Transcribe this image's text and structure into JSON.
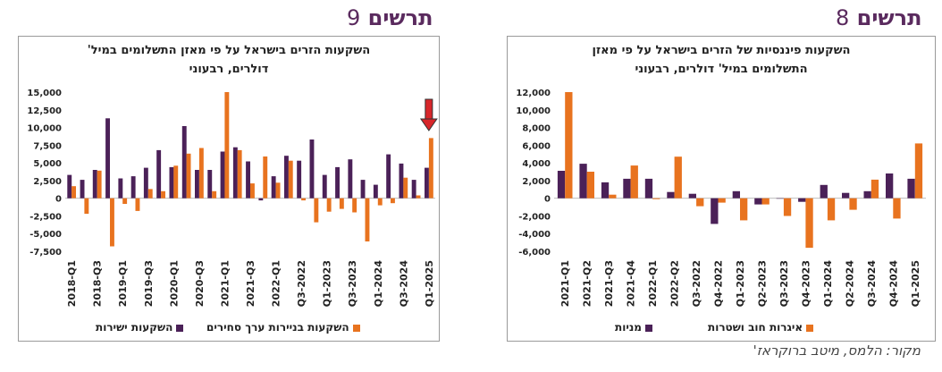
{
  "headers": {
    "left": {
      "label": "תרשים",
      "number": "9"
    },
    "right": {
      "label": "תרשים",
      "number": "8"
    }
  },
  "source": "מקור: הלמס, מיטב ברוקראז'",
  "colors": {
    "purple": "#4b2158",
    "orange": "#e8731f",
    "header": "#5a2a5e"
  },
  "chart_data": [
    {
      "id": "fig9",
      "type": "bar",
      "title_line1": "השקעות הזרים בישראל על פי מאזן התשלומים במיל'",
      "title_line2": "דולרים, רבעוני",
      "ylim": [
        -7500,
        15000
      ],
      "yticks": [
        "15,000",
        "12,500",
        "10,000",
        "7,500",
        "5,000",
        "2,500",
        "0",
        "-2,500",
        "-5,000",
        "-7,500"
      ],
      "ytick_values": [
        15000,
        12500,
        10000,
        7500,
        5000,
        2500,
        0,
        -2500,
        -5000,
        -7500
      ],
      "categories": [
        "2018-Q1",
        "2018-Q2",
        "2018-Q3",
        "2018-Q4",
        "2019-Q1",
        "2019-Q2",
        "2019-Q3",
        "2019-Q4",
        "2020-Q1",
        "2020-Q2",
        "2020-Q3",
        "2020-Q4",
        "2021-Q1",
        "2021-Q2",
        "2021-Q3",
        "2021-Q4",
        "2022-Q1",
        "2022-Q2",
        "Q3-2022",
        "Q4-2022",
        "Q1-2023",
        "Q2-2023",
        "Q3-2023",
        "Q4-2023",
        "Q1-2024",
        "Q2-2024",
        "Q3-2024",
        "Q4-2024",
        "Q1-2025"
      ],
      "xtick_labels": [
        "2018-Q1",
        "2018-Q3",
        "2019-Q1",
        "2019-Q3",
        "2020-Q1",
        "2020-Q3",
        "2021-Q1",
        "2021-Q3",
        "2022-Q1",
        "Q3-2022",
        "Q1-2023",
        "Q3-2023",
        "Q1-2024",
        "Q3-2024",
        "Q1-2025"
      ],
      "series": [
        {
          "name": "השקעות ישירות",
          "color": "#4b2158",
          "values": [
            3300,
            2600,
            4000,
            11300,
            2800,
            3100,
            4300,
            6800,
            4400,
            10200,
            4000,
            4000,
            6600,
            7200,
            5200,
            -300,
            3100,
            6000,
            5300,
            8300,
            3300,
            4400,
            5500,
            2600,
            1900,
            6200,
            4900,
            2600,
            4300
          ]
        },
        {
          "name": "השקעות בניירות ערך סחירים",
          "color": "#e8731f",
          "values": [
            1700,
            -2200,
            3900,
            -6800,
            -800,
            -1800,
            1300,
            1000,
            4600,
            6300,
            7100,
            1000,
            15000,
            6800,
            2100,
            5900,
            2200,
            5300,
            -300,
            -3400,
            -1900,
            -1500,
            -2000,
            -6100,
            -1000,
            -700,
            2900,
            400,
            8500
          ]
        }
      ],
      "annotation": "red down arrow pointing to last quarter"
    },
    {
      "id": "fig8",
      "type": "bar",
      "title_line1": "השקעות פיננסיות  של הזרים בישראל על פי מאזן",
      "title_line2": "התשלומים במיל' דולרים, רבעוני",
      "ylim": [
        -6000,
        12000
      ],
      "yticks": [
        "12,000",
        "10,000",
        "8,000",
        "6,000",
        "4,000",
        "2,000",
        "0",
        "-2,000",
        "-4,000",
        "-6,000"
      ],
      "ytick_values": [
        12000,
        10000,
        8000,
        6000,
        4000,
        2000,
        0,
        -2000,
        -4000,
        -6000
      ],
      "categories": [
        "2021-Q1",
        "2021-Q2",
        "2021-Q3",
        "2021-Q4",
        "2022-Q1",
        "2022-Q2",
        "Q3-2022",
        "Q4-2022",
        "Q1-2023",
        "Q2-2023",
        "Q3-2023",
        "Q4-2023",
        "Q1-2024",
        "Q2-2024",
        "Q3-2024",
        "Q4-2024",
        "Q1-2025"
      ],
      "xtick_labels": [
        "2021-Q1",
        "2021-Q2",
        "2021-Q3",
        "2021-Q4",
        "2022-Q1",
        "2022-Q2",
        "Q3-2022",
        "Q4-2022",
        "Q1-2023",
        "Q2-2023",
        "Q3-2023",
        "Q4-2023",
        "Q1-2024",
        "Q2-2024",
        "Q3-2024",
        "Q4-2024",
        "Q1-2025"
      ],
      "series": [
        {
          "name": "מניות",
          "color": "#4b2158",
          "values": [
            3100,
            3900,
            1800,
            2200,
            2200,
            700,
            500,
            -2900,
            800,
            -700,
            0,
            -400,
            1500,
            600,
            800,
            2800,
            2200
          ]
        },
        {
          "name": "איגרות חוב ושטרות",
          "color": "#e8731f",
          "values": [
            12000,
            3000,
            400,
            3700,
            -100,
            4700,
            -900,
            -500,
            -2500,
            -700,
            -2000,
            -5600,
            -2500,
            -1300,
            2100,
            -2300,
            6200
          ]
        }
      ]
    }
  ]
}
